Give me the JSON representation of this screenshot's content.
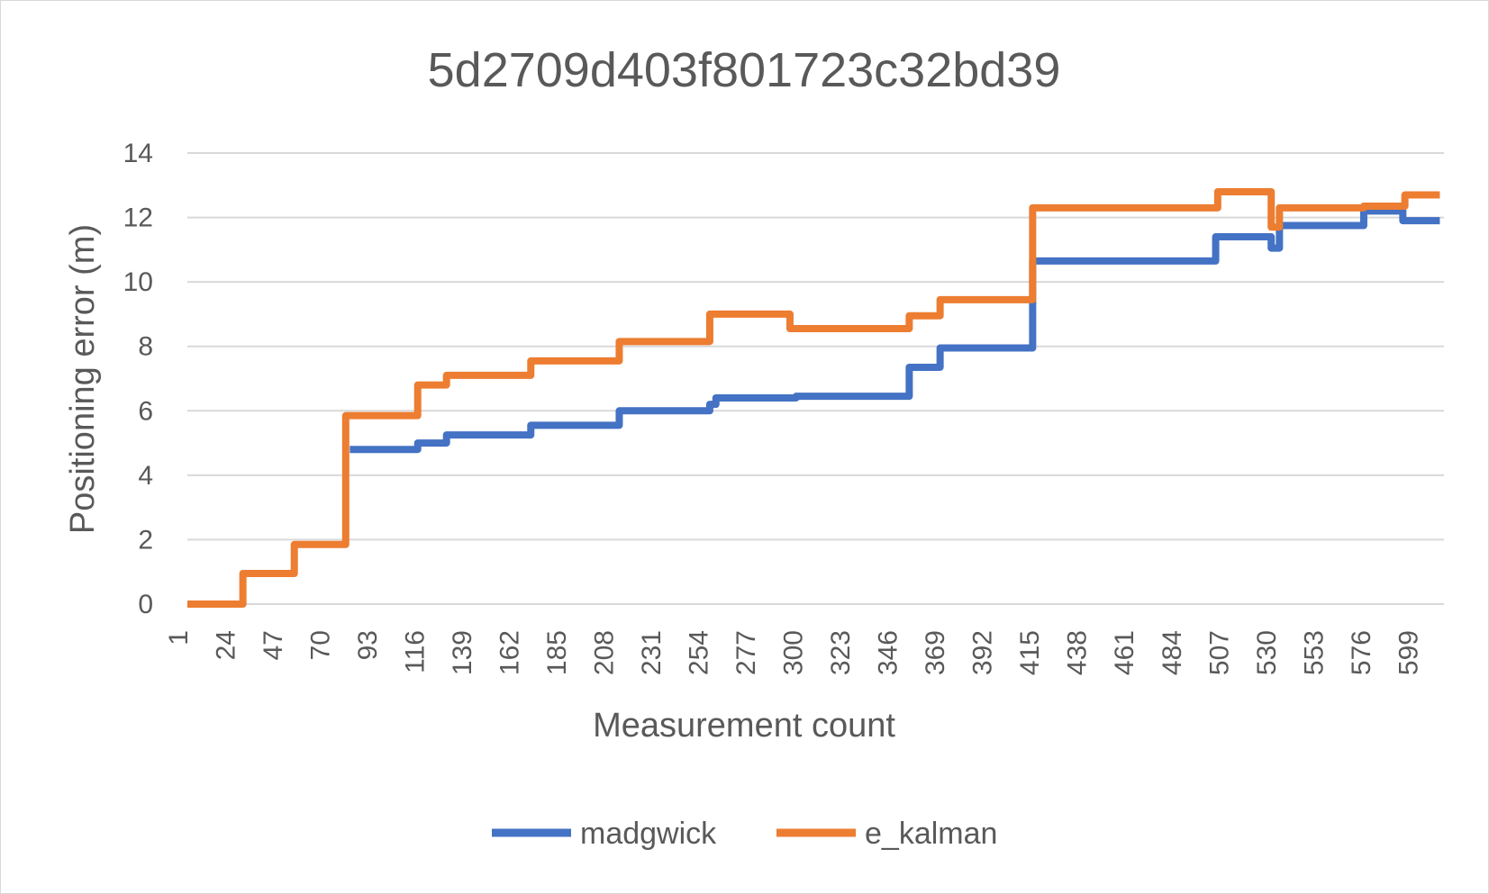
{
  "chart_data": {
    "type": "line",
    "title": "5d2709d403f801723c32bd39",
    "xlabel": "Measurement count",
    "ylabel": "Positioning error (m)",
    "xlim": [
      1,
      612
    ],
    "ylim": [
      0,
      14
    ],
    "yticks": [
      0,
      2,
      4,
      6,
      8,
      10,
      12,
      14
    ],
    "xtick_labels": [
      "1",
      "24",
      "47",
      "70",
      "93",
      "116",
      "139",
      "162",
      "185",
      "208",
      "231",
      "254",
      "277",
      "300",
      "323",
      "346",
      "369",
      "392",
      "415",
      "438",
      "461",
      "484",
      "507",
      "530",
      "553",
      "576",
      "599"
    ],
    "grid": true,
    "legend_position": "bottom",
    "series": [
      {
        "name": "madgwick",
        "color": "#4472C4",
        "points": [
          [
            80,
            4.8
          ],
          [
            113,
            4.8
          ],
          [
            113,
            5.0
          ],
          [
            127,
            5.0
          ],
          [
            127,
            5.25
          ],
          [
            168,
            5.25
          ],
          [
            168,
            5.55
          ],
          [
            211,
            5.55
          ],
          [
            211,
            6.0
          ],
          [
            255,
            6.0
          ],
          [
            255,
            6.2
          ],
          [
            258,
            6.2
          ],
          [
            258,
            6.4
          ],
          [
            297,
            6.4
          ],
          [
            297,
            6.45
          ],
          [
            352,
            6.45
          ],
          [
            352,
            7.35
          ],
          [
            367,
            7.35
          ],
          [
            367,
            7.95
          ],
          [
            412,
            7.95
          ],
          [
            412,
            10.65
          ],
          [
            501,
            10.65
          ],
          [
            501,
            11.4
          ],
          [
            528,
            11.4
          ],
          [
            528,
            11.05
          ],
          [
            532,
            11.05
          ],
          [
            532,
            11.75
          ],
          [
            573,
            11.75
          ],
          [
            573,
            12.2
          ],
          [
            592,
            12.2
          ],
          [
            592,
            11.9
          ],
          [
            610,
            11.9
          ]
        ]
      },
      {
        "name": "e_kalman",
        "color": "#ED7D31",
        "points": [
          [
            1,
            0.0
          ],
          [
            28,
            0.0
          ],
          [
            28,
            0.95
          ],
          [
            53,
            0.95
          ],
          [
            53,
            1.85
          ],
          [
            78,
            1.85
          ],
          [
            78,
            5.85
          ],
          [
            113,
            5.85
          ],
          [
            113,
            6.8
          ],
          [
            127,
            6.8
          ],
          [
            127,
            7.1
          ],
          [
            168,
            7.1
          ],
          [
            168,
            7.55
          ],
          [
            211,
            7.55
          ],
          [
            211,
            8.15
          ],
          [
            255,
            8.15
          ],
          [
            255,
            9.0
          ],
          [
            294,
            9.0
          ],
          [
            294,
            8.55
          ],
          [
            352,
            8.55
          ],
          [
            352,
            8.95
          ],
          [
            367,
            8.95
          ],
          [
            367,
            9.45
          ],
          [
            412,
            9.45
          ],
          [
            412,
            12.3
          ],
          [
            502,
            12.3
          ],
          [
            502,
            12.8
          ],
          [
            528,
            12.8
          ],
          [
            528,
            11.7
          ],
          [
            532,
            11.7
          ],
          [
            532,
            12.3
          ],
          [
            573,
            12.3
          ],
          [
            573,
            12.35
          ],
          [
            593,
            12.35
          ],
          [
            593,
            12.7
          ],
          [
            610,
            12.7
          ]
        ]
      }
    ]
  }
}
